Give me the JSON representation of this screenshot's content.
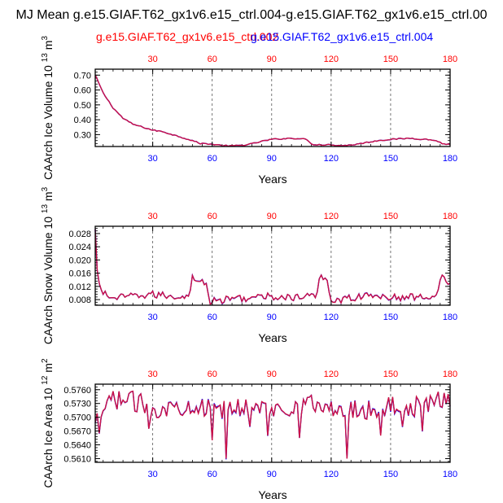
{
  "figure": {
    "title": "MJ Mean g.e15.GIAF.T62_gx1v6.e15_ctrl.004-g.e15.GIAF.T62_gx1v6.e15_ctrl.00",
    "legend": [
      {
        "label": "g.e15.GIAF.T62_gx1v6.e15_ctrl.002",
        "color": "#ff0000"
      },
      {
        "label": "g.e15.GIAF.T62_gx1v6.e15_ctrl.004",
        "color": "#0000ff"
      }
    ]
  },
  "colors": {
    "series_a": "#ff0000",
    "series_b": "#0000ff",
    "line": "#cc1144",
    "top_ticks": "#ff0000",
    "bottom_ticks": "#0000ff"
  },
  "chart_data": [
    {
      "type": "line",
      "xlabel": "Years",
      "ylabel_main": "CAArch Ice Volume 10",
      "ylabel_exp": "13",
      "ylabel_unit": "m",
      "ylabel_unit_exp": "3",
      "xlim": [
        1,
        180
      ],
      "ylim": [
        0.22,
        0.74
      ],
      "yticks": [
        "0.30",
        "0.40",
        "0.50",
        "0.60",
        "0.70"
      ],
      "ytick_values": [
        0.3,
        0.4,
        0.5,
        0.6,
        0.7
      ],
      "xticks": [
        "30",
        "60",
        "90",
        "120",
        "150",
        "180"
      ],
      "xtick_values": [
        30,
        60,
        90,
        120,
        150,
        180
      ],
      "anchors": [
        [
          1,
          0.7
        ],
        [
          5,
          0.58
        ],
        [
          10,
          0.48
        ],
        [
          15,
          0.41
        ],
        [
          20,
          0.37
        ],
        [
          25,
          0.35
        ],
        [
          30,
          0.33
        ],
        [
          35,
          0.32
        ],
        [
          40,
          0.3
        ],
        [
          45,
          0.28
        ],
        [
          50,
          0.26
        ],
        [
          54,
          0.24
        ],
        [
          58,
          0.238
        ],
        [
          62,
          0.232
        ],
        [
          66,
          0.226
        ],
        [
          70,
          0.224
        ],
        [
          75,
          0.228
        ],
        [
          80,
          0.238
        ],
        [
          85,
          0.255
        ],
        [
          90,
          0.268
        ],
        [
          95,
          0.272
        ],
        [
          100,
          0.276
        ],
        [
          105,
          0.272
        ],
        [
          108,
          0.266
        ],
        [
          110,
          0.235
        ],
        [
          115,
          0.232
        ],
        [
          120,
          0.232
        ],
        [
          125,
          0.226
        ],
        [
          130,
          0.23
        ],
        [
          135,
          0.24
        ],
        [
          140,
          0.252
        ],
        [
          145,
          0.262
        ],
        [
          150,
          0.268
        ],
        [
          155,
          0.272
        ],
        [
          160,
          0.276
        ],
        [
          165,
          0.27
        ],
        [
          170,
          0.266
        ],
        [
          174,
          0.255
        ],
        [
          176,
          0.238
        ],
        [
          180,
          0.235
        ]
      ],
      "noise": 0.004
    },
    {
      "type": "line",
      "xlabel": "Years",
      "ylabel_main": "CAArch Snow Volume 10",
      "ylabel_exp": "13",
      "ylabel_unit": "m",
      "ylabel_unit_exp": "3",
      "xlim": [
        1,
        180
      ],
      "ylim": [
        0.0063,
        0.0302
      ],
      "yticks": [
        "0.008",
        "0.012",
        "0.016",
        "0.020",
        "0.024",
        "0.028"
      ],
      "ytick_values": [
        0.008,
        0.012,
        0.016,
        0.02,
        0.024,
        0.028
      ],
      "xticks": [
        "30",
        "60",
        "90",
        "120",
        "150",
        "180"
      ],
      "xtick_values": [
        30,
        60,
        90,
        120,
        150,
        180
      ],
      "anchors": [
        [
          1,
          0.029
        ],
        [
          2,
          0.016
        ],
        [
          4,
          0.011
        ],
        [
          7,
          0.009
        ],
        [
          12,
          0.0085
        ],
        [
          20,
          0.009
        ],
        [
          30,
          0.0095
        ],
        [
          40,
          0.009
        ],
        [
          48,
          0.009
        ],
        [
          50,
          0.0145
        ],
        [
          54,
          0.014
        ],
        [
          57,
          0.012
        ],
        [
          59,
          0.0075
        ],
        [
          63,
          0.0075
        ],
        [
          70,
          0.0085
        ],
        [
          80,
          0.0085
        ],
        [
          90,
          0.009
        ],
        [
          100,
          0.0085
        ],
        [
          110,
          0.009
        ],
        [
          113,
          0.0095
        ],
        [
          114,
          0.015
        ],
        [
          118,
          0.0145
        ],
        [
          120,
          0.0075
        ],
        [
          125,
          0.008
        ],
        [
          135,
          0.009
        ],
        [
          145,
          0.009
        ],
        [
          155,
          0.0085
        ],
        [
          165,
          0.009
        ],
        [
          173,
          0.009
        ],
        [
          175,
          0.015
        ],
        [
          178,
          0.014
        ],
        [
          180,
          0.0125
        ]
      ],
      "noise": 0.0011
    },
    {
      "type": "line",
      "xlabel": "Years",
      "ylabel_main": "CAArch Ice Area 10",
      "ylabel_exp": "12",
      "ylabel_unit": "m",
      "ylabel_unit_exp": "2",
      "xlim": [
        1,
        180
      ],
      "ylim": [
        0.5602,
        0.5772
      ],
      "yticks": [
        "0.5610",
        "0.5640",
        "0.5670",
        "0.5700",
        "0.5730",
        "0.5760"
      ],
      "ytick_values": [
        0.561,
        0.564,
        0.567,
        0.57,
        0.573,
        0.576
      ],
      "xticks": [
        "30",
        "60",
        "90",
        "120",
        "150",
        "180"
      ],
      "xtick_values": [
        30,
        60,
        90,
        120,
        150,
        180
      ],
      "anchors": [
        [
          1,
          0.568
        ],
        [
          5,
          0.5715
        ],
        [
          10,
          0.574
        ],
        [
          20,
          0.5735
        ],
        [
          30,
          0.572
        ],
        [
          40,
          0.572
        ],
        [
          50,
          0.573
        ],
        [
          60,
          0.5715
        ],
        [
          70,
          0.572
        ],
        [
          80,
          0.5725
        ],
        [
          90,
          0.5715
        ],
        [
          100,
          0.5725
        ],
        [
          110,
          0.573
        ],
        [
          120,
          0.5715
        ],
        [
          130,
          0.572
        ],
        [
          140,
          0.5715
        ],
        [
          150,
          0.5725
        ],
        [
          160,
          0.572
        ],
        [
          170,
          0.573
        ],
        [
          180,
          0.574
        ]
      ],
      "noise": 0.0022,
      "spikes": [
        [
          67,
          0.561
        ],
        [
          128,
          0.561
        ],
        [
          60,
          0.565
        ],
        [
          88,
          0.566
        ],
        [
          104,
          0.5655
        ],
        [
          145,
          0.566
        ],
        [
          166,
          0.567
        ],
        [
          28,
          0.5675
        ],
        [
          79,
          0.568
        ],
        [
          156,
          0.568
        ],
        [
          3,
          0.5665
        ]
      ]
    }
  ]
}
